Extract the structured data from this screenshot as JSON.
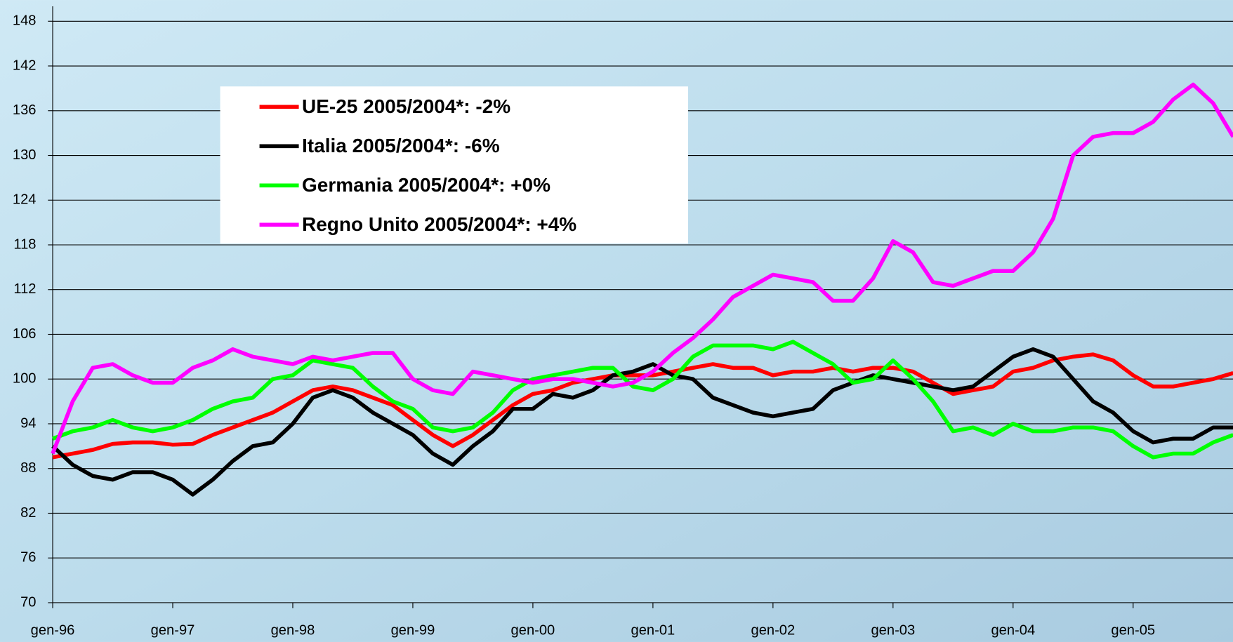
{
  "chart_data": {
    "type": "line",
    "categories": [
      "gen-96",
      null,
      null,
      null,
      null,
      null,
      "gen-97",
      null,
      null,
      null,
      null,
      null,
      "gen-98",
      null,
      null,
      null,
      null,
      null,
      "gen-99",
      null,
      null,
      null,
      null,
      null,
      "gen-00",
      null,
      null,
      null,
      null,
      null,
      "gen-01",
      null,
      null,
      null,
      null,
      null,
      "gen-02",
      null,
      null,
      null,
      null,
      null,
      "gen-03",
      null,
      null,
      null,
      null,
      null,
      "gen-04",
      null,
      null,
      null,
      null,
      null,
      "gen-05",
      null,
      null,
      null,
      null,
      null
    ],
    "series": [
      {
        "name": "UE-25 2005/2004*: -2%",
        "color": "#ff0000",
        "values": [
          89.5,
          90,
          90.5,
          91.3,
          91.5,
          91.5,
          91.2,
          91.3,
          92.5,
          93.5,
          94.5,
          95.5,
          97,
          98.5,
          99,
          98.5,
          97.5,
          96.5,
          94.5,
          92.5,
          91,
          92.5,
          94.5,
          96.5,
          98,
          98.5,
          99.5,
          100,
          100.5,
          100.5,
          100.5,
          101,
          101.5,
          102,
          101.5,
          101.5,
          100.5,
          101,
          101,
          101.5,
          101,
          101.5,
          101.5,
          101,
          99.5,
          98,
          98.5,
          99,
          101,
          101.5,
          102.5,
          103,
          103.3,
          102.5,
          100.5,
          99,
          99,
          99.5,
          100,
          100.8
        ]
      },
      {
        "name": "Italia 2005/2004*: -6%",
        "color": "#000000",
        "values": [
          91,
          88.5,
          87,
          86.5,
          87.5,
          87.5,
          86.5,
          84.5,
          86.5,
          89,
          91,
          91.5,
          94,
          97.5,
          98.5,
          97.5,
          95.5,
          94,
          92.5,
          90,
          88.5,
          91,
          93,
          96,
          96,
          98,
          97.5,
          98.5,
          100.5,
          101,
          102,
          100.5,
          100,
          97.5,
          96.5,
          95.5,
          95,
          95.5,
          96,
          98.5,
          99.5,
          100.5,
          100,
          99.5,
          99,
          98.5,
          99,
          101,
          103,
          104,
          103,
          100,
          97,
          95.5,
          93,
          91.5,
          92,
          92,
          93.5,
          93.5
        ]
      },
      {
        "name": "Germania 2005/2004*: +0%",
        "color": "#00ff00",
        "values": [
          92,
          93,
          93.5,
          94.5,
          93.5,
          93,
          93.5,
          94.5,
          96,
          97,
          97.5,
          100,
          100.5,
          102.5,
          102,
          101.5,
          99,
          97,
          96,
          93.5,
          93,
          93.5,
          95.5,
          98.5,
          100,
          100.5,
          101,
          101.5,
          101.5,
          99,
          98.5,
          100,
          103,
          104.5,
          104.5,
          104.5,
          104,
          105,
          103.5,
          102,
          99.5,
          100,
          102.5,
          100,
          97,
          93,
          93.5,
          92.5,
          94,
          93,
          93,
          93.5,
          93.5,
          93,
          91,
          89.5,
          90,
          90,
          91.5,
          92.5
        ]
      },
      {
        "name": "Regno Unito 2005/2004*: +4%",
        "color": "#ff00ff",
        "values": [
          90,
          97,
          101.5,
          102,
          100.5,
          99.5,
          99.5,
          101.5,
          102.5,
          104,
          103,
          102.5,
          102,
          103,
          102.5,
          103,
          103.5,
          103.5,
          100,
          98.5,
          98,
          101,
          100.5,
          100,
          99.5,
          100,
          100,
          99.5,
          99,
          99.5,
          101,
          103.5,
          105.5,
          108,
          111,
          112.5,
          114,
          113.5,
          113,
          110.5,
          110.5,
          113.5,
          118.5,
          117,
          113,
          112.5,
          113.5,
          114.5,
          114.5,
          117,
          121.5,
          130,
          132.5,
          133,
          133,
          134.5,
          137.5,
          139.5,
          137,
          132.5
        ]
      }
    ],
    "ylim": [
      70,
      148
    ],
    "yticks": [
      70,
      76,
      82,
      88,
      94,
      100,
      106,
      112,
      118,
      124,
      130,
      136,
      142,
      148
    ],
    "grid": true
  }
}
